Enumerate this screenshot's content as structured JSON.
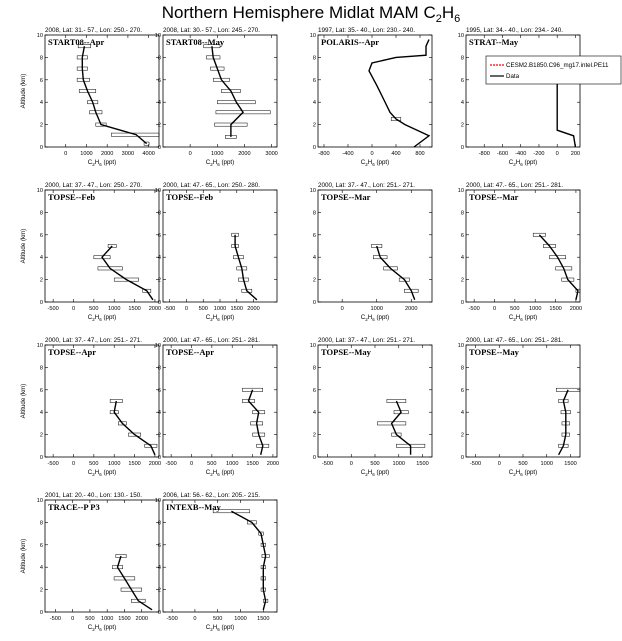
{
  "title": "Northern Hemisphere Midlat MAM C",
  "title_sub": "2",
  "title_tail": "H",
  "title_sub2": "6",
  "ylabel": "Altitude (km)",
  "xlabel_main": "C",
  "xlabel_sub1": "2",
  "xlabel_mid": "H",
  "xlabel_sub2": "6",
  "xlabel_tail": " (ppt)",
  "legend": {
    "model": "CESM2.B1850.C96_mg17.intel.PE11",
    "data": "Data",
    "model_color": "#ff0000",
    "data_color": "#000000"
  },
  "chart_data": [
    {
      "type": "line",
      "header": "2008, Lat:  31.- 57., Lon: 250.- 270.",
      "label": "START08--Apr",
      "xlim": [
        -1000,
        4500
      ],
      "xticks": [
        0,
        1000,
        2000,
        3000,
        4000
      ],
      "ylim": [
        0,
        10
      ],
      "yticks": [
        0,
        2,
        4,
        6,
        8,
        10
      ],
      "data": {
        "alt": [
          0.3,
          1.1,
          2.0,
          3.1,
          4.0,
          5.0,
          6.0,
          7.0,
          8.0,
          9.0
        ],
        "val": [
          3900,
          3400,
          1700,
          1450,
          1300,
          1050,
          850,
          800,
          800,
          900
        ],
        "err": [
          120,
          1200,
          250,
          300,
          250,
          400,
          300,
          250,
          250,
          300
        ]
      }
    },
    {
      "type": "line",
      "header": "2008, Lat:  30.- 57., Lon: 245.- 270.",
      "label": "START08--May",
      "xlim": [
        -1000,
        3200
      ],
      "xticks": [
        0,
        1000,
        2000,
        3000
      ],
      "ylim": [
        0,
        10
      ],
      "yticks": [
        0,
        2,
        4,
        6,
        8,
        10
      ],
      "data": {
        "alt": [
          0.9,
          2.0,
          3.1,
          4.0,
          5.0,
          6.0,
          7.0,
          8.0,
          9.0
        ],
        "val": [
          1500,
          1500,
          1950,
          1700,
          1500,
          1150,
          1000,
          850,
          800
        ],
        "err": [
          200,
          600,
          1000,
          700,
          350,
          300,
          250,
          250,
          300
        ]
      }
    },
    {
      "type": "line",
      "header": "1997, Lat:  35.- 40., Lon: 230.- 240.",
      "label": "POLARIS--Apr",
      "xlim": [
        -900,
        1000
      ],
      "xticks": [
        -800,
        -400,
        0,
        400,
        800
      ],
      "ylim": [
        0,
        10
      ],
      "yticks": [
        0,
        2,
        4,
        6,
        8,
        10
      ],
      "data": {
        "alt": [
          0.0,
          1.0,
          2.0,
          2.5,
          3.1,
          4.2,
          5.5,
          6.8,
          7.5,
          8.0,
          8.2,
          9.0,
          9.6
        ],
        "val": [
          700,
          950,
          550,
          400,
          300,
          200,
          80,
          -50,
          0,
          400,
          900,
          900,
          950
        ],
        "err": [
          0,
          0,
          0,
          80,
          0,
          0,
          0,
          0,
          0,
          0,
          0,
          0,
          0
        ]
      }
    },
    {
      "type": "line",
      "header": "1995, Lat:  34.- 40., Lon: 234.- 240.",
      "label": "STRAT--May",
      "xlim": [
        -1000,
        250
      ],
      "xticks": [
        -800,
        -600,
        -400,
        -200,
        0,
        200
      ],
      "ylim": [
        0,
        10
      ],
      "yticks": [
        0,
        2,
        4,
        6,
        8,
        10
      ],
      "data": {
        "alt": [
          0.0,
          1.0,
          1.5,
          7.8
        ],
        "val": [
          200,
          180,
          0,
          0
        ],
        "err": [
          0,
          0,
          0,
          0
        ]
      }
    },
    {
      "type": "line",
      "header": "2000, Lat:  37.- 47., Lon: 250.- 270.",
      "label": "TOPSE--Feb",
      "xlim": [
        -700,
        2100
      ],
      "xticks": [
        -500,
        0,
        500,
        1000,
        1500,
        2000
      ],
      "ylim": [
        0,
        10
      ],
      "yticks": [
        0,
        2,
        4,
        6,
        8,
        10
      ],
      "data": {
        "alt": [
          0.2,
          1.0,
          2.0,
          3.0,
          4.0,
          5.0
        ],
        "val": [
          1950,
          1800,
          1300,
          900,
          700,
          950
        ],
        "err": [
          0,
          100,
          300,
          300,
          200,
          100
        ]
      }
    },
    {
      "type": "line",
      "header": "2000, Lat:  47.- 65., Lon: 250.- 280.",
      "label": "TOPSE--Feb",
      "xlim": [
        -700,
        2700
      ],
      "xticks": [
        -500,
        0,
        500,
        1000,
        1500,
        2000
      ],
      "ylim": [
        0,
        10
      ],
      "yticks": [
        0,
        2,
        4,
        6,
        8,
        10
      ],
      "data": {
        "alt": [
          0.2,
          1.0,
          2.0,
          3.0,
          4.0,
          5.0,
          6.0
        ],
        "val": [
          2100,
          1800,
          1700,
          1650,
          1550,
          1450,
          1450
        ],
        "err": [
          0,
          150,
          150,
          150,
          150,
          100,
          100
        ]
      }
    },
    {
      "type": "line",
      "header": "2000, Lat:  37.- 47., Lon: 251.- 271.",
      "label": "TOPSE--Mar",
      "xlim": [
        -700,
        2600
      ],
      "xticks": [
        0,
        1000,
        2000
      ],
      "ylim": [
        0,
        10
      ],
      "yticks": [
        0,
        2,
        4,
        6,
        8,
        10
      ],
      "data": {
        "alt": [
          0.2,
          1.0,
          2.0,
          3.0,
          4.0,
          5.0
        ],
        "val": [
          2100,
          2000,
          1800,
          1400,
          1100,
          1000
        ],
        "err": [
          0,
          200,
          150,
          200,
          200,
          150
        ]
      }
    },
    {
      "type": "line",
      "header": "2000, Lat:  47.- 65., Lon: 251.- 281.",
      "label": "TOPSE--Mar",
      "xlim": [
        -700,
        2100
      ],
      "xticks": [
        -500,
        0,
        500,
        1000,
        1500,
        2000
      ],
      "ylim": [
        0,
        10
      ],
      "yticks": [
        0,
        2,
        4,
        6,
        8,
        10
      ],
      "data": {
        "alt": [
          0.2,
          1.0,
          2.0,
          3.0,
          4.0,
          5.0,
          6.0
        ],
        "val": [
          2000,
          2050,
          1800,
          1700,
          1550,
          1350,
          1100
        ],
        "err": [
          0,
          50,
          150,
          200,
          200,
          150,
          150
        ]
      }
    },
    {
      "type": "line",
      "header": "2000, Lat:  37.- 47., Lon: 251.- 271.",
      "label": "TOPSE--Apr",
      "xlim": [
        -700,
        2100
      ],
      "xticks": [
        -500,
        0,
        500,
        1000,
        1500,
        2000
      ],
      "ylim": [
        0,
        10
      ],
      "yticks": [
        0,
        2,
        4,
        6,
        8,
        10
      ],
      "data": {
        "alt": [
          0.2,
          1.0,
          2.0,
          3.0,
          4.0,
          5.0
        ],
        "val": [
          2000,
          1900,
          1500,
          1200,
          1000,
          1050
        ],
        "err": [
          0,
          150,
          150,
          100,
          100,
          150
        ]
      }
    },
    {
      "type": "line",
      "header": "2000, Lat:  47.- 65., Lon: 251.- 281.",
      "label": "TOPSE--Apr",
      "xlim": [
        -700,
        2100
      ],
      "xticks": [
        -500,
        0,
        500,
        1000,
        1500,
        2000
      ],
      "ylim": [
        0,
        10
      ],
      "yticks": [
        0,
        2,
        4,
        6,
        8,
        10
      ],
      "data": {
        "alt": [
          0.2,
          1.0,
          2.0,
          3.0,
          4.0,
          5.0,
          6.0
        ],
        "val": [
          1700,
          1750,
          1650,
          1600,
          1650,
          1400,
          1500
        ],
        "err": [
          0,
          150,
          150,
          150,
          150,
          150,
          250
        ]
      }
    },
    {
      "type": "line",
      "header": "2000, Lat:  37.- 47., Lon: 251.- 271.",
      "label": "TOPSE--May",
      "xlim": [
        -700,
        1700
      ],
      "xticks": [
        -500,
        0,
        500,
        1000,
        1500
      ],
      "ylim": [
        0,
        10
      ],
      "yticks": [
        0,
        2,
        4,
        6,
        8,
        10
      ],
      "data": {
        "alt": [
          0.2,
          1.0,
          2.0,
          3.0,
          4.0,
          5.0
        ],
        "val": [
          1250,
          1250,
          950,
          850,
          1050,
          950
        ],
        "err": [
          0,
          300,
          100,
          300,
          150,
          200
        ]
      }
    },
    {
      "type": "line",
      "header": "2000, Lat:  47.- 65., Lon: 251.- 281.",
      "label": "TOPSE--May",
      "xlim": [
        -700,
        1700
      ],
      "xticks": [
        -500,
        0,
        500,
        1000,
        1500
      ],
      "ylim": [
        0,
        10
      ],
      "yticks": [
        0,
        2,
        4,
        6,
        8,
        10
      ],
      "data": {
        "alt": [
          0.2,
          1.0,
          2.0,
          3.0,
          4.0,
          5.0,
          6.0
        ],
        "val": [
          1250,
          1350,
          1400,
          1400,
          1400,
          1350,
          1450
        ],
        "err": [
          0,
          100,
          80,
          80,
          100,
          100,
          250
        ]
      }
    },
    {
      "type": "line",
      "header": "2001, Lat:  20.- 40., Lon: 130.- 150.",
      "label": "TRACE--P P3",
      "xlim": [
        -800,
        2500
      ],
      "xticks": [
        -500,
        0,
        500,
        1000,
        1500,
        2000
      ],
      "ylim": [
        0,
        10
      ],
      "yticks": [
        0,
        2,
        4,
        6,
        8,
        10
      ],
      "data": {
        "alt": [
          0.2,
          1.0,
          2.0,
          3.0,
          4.0,
          5.0
        ],
        "val": [
          2300,
          1900,
          1700,
          1500,
          1300,
          1400
        ],
        "err": [
          0,
          200,
          300,
          300,
          150,
          150
        ]
      }
    },
    {
      "type": "line",
      "header": "2006, Lat:  56.- 62., Lon: 205.- 215.",
      "label": "INTEXB--May",
      "xlim": [
        -700,
        1800
      ],
      "xticks": [
        -500,
        0,
        500,
        1000,
        1500
      ],
      "ylim": [
        0,
        10
      ],
      "yticks": [
        0,
        2,
        4,
        6,
        8,
        10
      ],
      "data": {
        "alt": [
          0.2,
          1.0,
          2.0,
          3.0,
          4.0,
          5.0,
          6.0,
          7.0,
          8.0,
          9.0
        ],
        "val": [
          1500,
          1550,
          1500,
          1500,
          1500,
          1550,
          1500,
          1450,
          1250,
          800
        ],
        "err": [
          0,
          50,
          50,
          50,
          50,
          80,
          50,
          50,
          100,
          400
        ]
      }
    }
  ]
}
